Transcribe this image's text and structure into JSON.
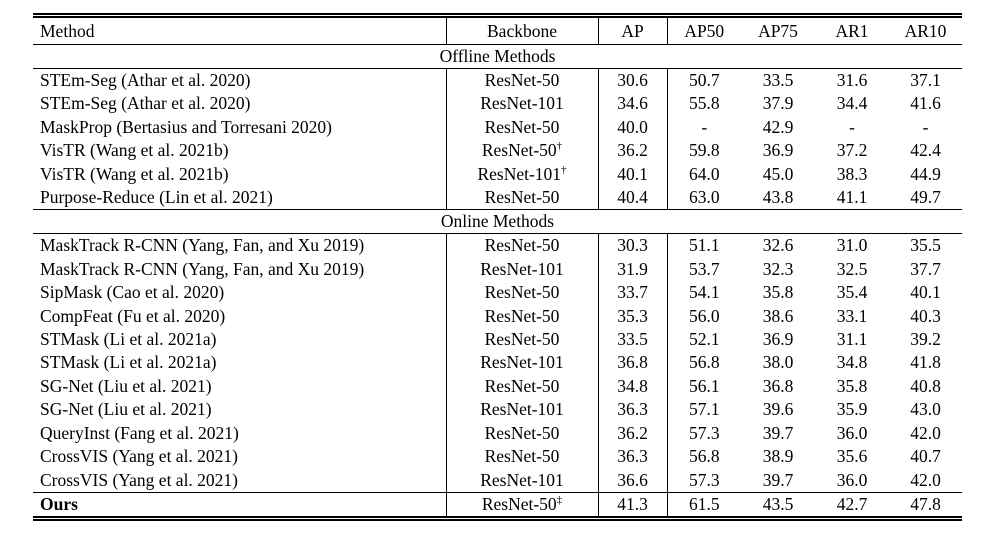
{
  "colors": {
    "text": "#000000",
    "background": "#ffffff",
    "rule": "#000000"
  },
  "table": {
    "columns": [
      "Method",
      "Backbone",
      "AP",
      "AP50",
      "AP75",
      "AR1",
      "AR10"
    ],
    "sections": [
      {
        "label": "Offline Methods",
        "rows": [
          {
            "method": "STEm-Seg (Athar et al. 2020)",
            "backbone": "ResNet-50",
            "backbone_sup": "",
            "bold_method": false,
            "values": [
              "30.6",
              "50.7",
              "33.5",
              "31.6",
              "37.1"
            ]
          },
          {
            "method": "STEm-Seg (Athar et al. 2020)",
            "backbone": "ResNet-101",
            "backbone_sup": "",
            "bold_method": false,
            "values": [
              "34.6",
              "55.8",
              "37.9",
              "34.4",
              "41.6"
            ]
          },
          {
            "method": "MaskProp (Bertasius and Torresani 2020)",
            "backbone": "ResNet-50",
            "backbone_sup": "",
            "bold_method": false,
            "values": [
              "40.0",
              "-",
              "42.9",
              "-",
              "-"
            ]
          },
          {
            "method": "VisTR (Wang et al. 2021b)",
            "backbone": "ResNet-50",
            "backbone_sup": "†",
            "bold_method": false,
            "values": [
              "36.2",
              "59.8",
              "36.9",
              "37.2",
              "42.4"
            ]
          },
          {
            "method": "VisTR (Wang et al. 2021b)",
            "backbone": "ResNet-101",
            "backbone_sup": "†",
            "bold_method": false,
            "values": [
              "40.1",
              "64.0",
              "45.0",
              "38.3",
              "44.9"
            ]
          },
          {
            "method": "Purpose-Reduce (Lin et al. 2021)",
            "backbone": "ResNet-50",
            "backbone_sup": "",
            "bold_method": false,
            "values": [
              "40.4",
              "63.0",
              "43.8",
              "41.1",
              "49.7"
            ]
          }
        ]
      },
      {
        "label": "Online Methods",
        "rows": [
          {
            "method": "MaskTrack R-CNN (Yang, Fan, and Xu 2019)",
            "backbone": "ResNet-50",
            "backbone_sup": "",
            "bold_method": false,
            "values": [
              "30.3",
              "51.1",
              "32.6",
              "31.0",
              "35.5"
            ]
          },
          {
            "method": "MaskTrack R-CNN (Yang, Fan, and Xu 2019)",
            "backbone": "ResNet-101",
            "backbone_sup": "",
            "bold_method": false,
            "values": [
              "31.9",
              "53.7",
              "32.3",
              "32.5",
              "37.7"
            ]
          },
          {
            "method": "SipMask (Cao et al. 2020)",
            "backbone": "ResNet-50",
            "backbone_sup": "",
            "bold_method": false,
            "values": [
              "33.7",
              "54.1",
              "35.8",
              "35.4",
              "40.1"
            ]
          },
          {
            "method": "CompFeat (Fu et al. 2020)",
            "backbone": "ResNet-50",
            "backbone_sup": "",
            "bold_method": false,
            "values": [
              "35.3",
              "56.0",
              "38.6",
              "33.1",
              "40.3"
            ]
          },
          {
            "method": "STMask (Li et al. 2021a)",
            "backbone": "ResNet-50",
            "backbone_sup": "",
            "bold_method": false,
            "values": [
              "33.5",
              "52.1",
              "36.9",
              "31.1",
              "39.2"
            ]
          },
          {
            "method": "STMask (Li et al. 2021a)",
            "backbone": "ResNet-101",
            "backbone_sup": "",
            "bold_method": false,
            "values": [
              "36.8",
              "56.8",
              "38.0",
              "34.8",
              "41.8"
            ]
          },
          {
            "method": "SG-Net (Liu et al. 2021)",
            "backbone": "ResNet-50",
            "backbone_sup": "",
            "bold_method": false,
            "values": [
              "34.8",
              "56.1",
              "36.8",
              "35.8",
              "40.8"
            ]
          },
          {
            "method": "SG-Net (Liu et al. 2021)",
            "backbone": "ResNet-101",
            "backbone_sup": "",
            "bold_method": false,
            "values": [
              "36.3",
              "57.1",
              "39.6",
              "35.9",
              "43.0"
            ]
          },
          {
            "method": "QueryInst (Fang et al. 2021)",
            "backbone": "ResNet-50",
            "backbone_sup": "",
            "bold_method": false,
            "values": [
              "36.2",
              "57.3",
              "39.7",
              "36.0",
              "42.0"
            ]
          },
          {
            "method": "CrossVIS (Yang et al. 2021)",
            "backbone": "ResNet-50",
            "backbone_sup": "",
            "bold_method": false,
            "values": [
              "36.3",
              "56.8",
              "38.9",
              "35.6",
              "40.7"
            ]
          },
          {
            "method": "CrossVIS (Yang et al. 2021)",
            "backbone": "ResNet-101",
            "backbone_sup": "",
            "bold_method": false,
            "values": [
              "36.6",
              "57.3",
              "39.7",
              "36.0",
              "42.0"
            ]
          }
        ]
      },
      {
        "label": "",
        "rows": [
          {
            "method": "Ours",
            "backbone": "ResNet-50",
            "backbone_sup": "‡",
            "bold_method": true,
            "values": [
              "41.3",
              "61.5",
              "43.5",
              "42.7",
              "47.8"
            ]
          }
        ]
      }
    ]
  }
}
